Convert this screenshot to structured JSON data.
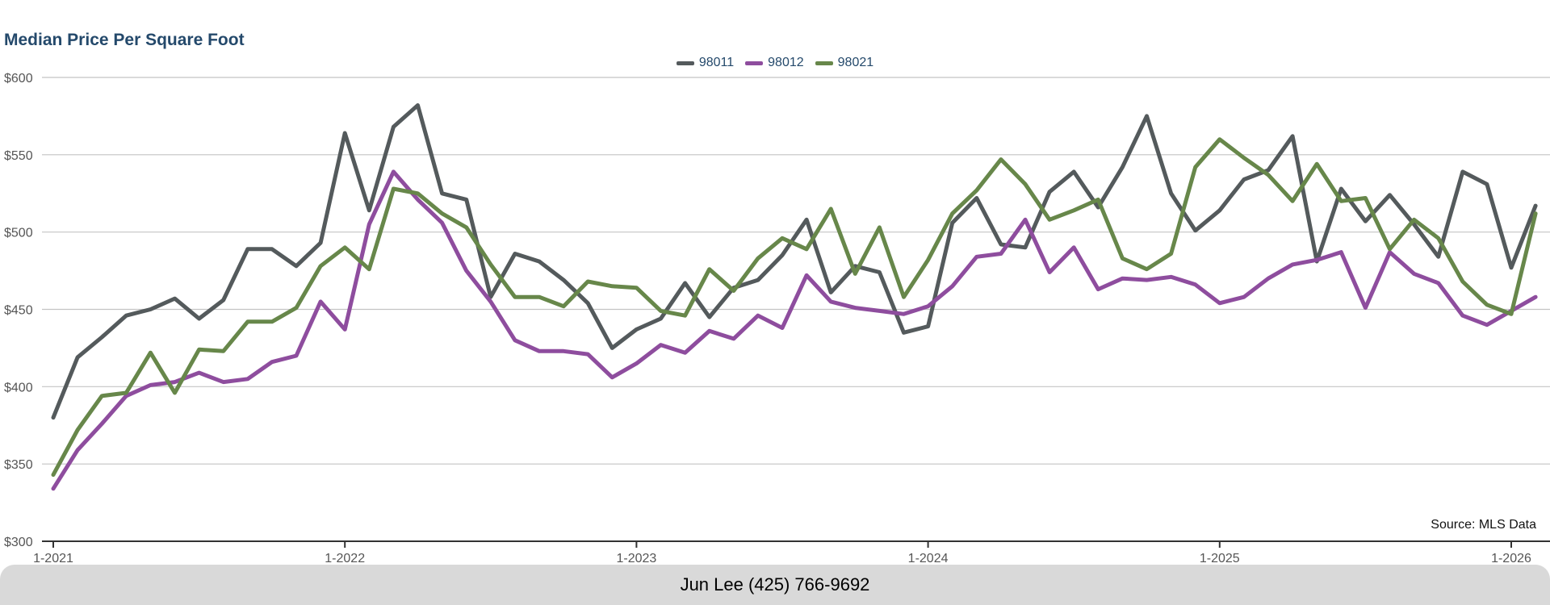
{
  "chart_data": {
    "type": "line",
    "title": "Median Price Per Square Foot",
    "ylim": [
      300,
      600
    ],
    "y_ticks": [
      "$600",
      "$550",
      "$500",
      "$450",
      "$400",
      "$350",
      "$300"
    ],
    "x_ticks": [
      "1-2021",
      "1-2022",
      "1-2023",
      "1-2024",
      "1-2025",
      "1-2026"
    ],
    "grid": "horizontal",
    "legend": "top-center",
    "source": "Source: MLS Data",
    "series": [
      {
        "name": "98011",
        "color": "#545a5c",
        "values": [
          380,
          419,
          432,
          446,
          450,
          457,
          444,
          456,
          489,
          489,
          478,
          493,
          564,
          514,
          568,
          582,
          525,
          521,
          458,
          486,
          481,
          469,
          454,
          425,
          437,
          444,
          467,
          445,
          464,
          469,
          485,
          508,
          461,
          478,
          474,
          435,
          439,
          506,
          522,
          492,
          490,
          526,
          539,
          516,
          542,
          575,
          525,
          501,
          514,
          534,
          540,
          562,
          481,
          528,
          507,
          524,
          505,
          484,
          539,
          531,
          477,
          517
        ]
      },
      {
        "name": "98012",
        "color": "#8e4d9e",
        "values": [
          334,
          359,
          376,
          394,
          401,
          403,
          409,
          403,
          405,
          416,
          420,
          455,
          437,
          505,
          539,
          521,
          506,
          475,
          455,
          430,
          423,
          423,
          421,
          406,
          415,
          427,
          422,
          436,
          431,
          446,
          438,
          472,
          455,
          451,
          449,
          447,
          452,
          465,
          484,
          486,
          508,
          474,
          490,
          463,
          470,
          469,
          471,
          466,
          454,
          458,
          470,
          479,
          482,
          487,
          451,
          487,
          473,
          467,
          446,
          440,
          449,
          458
        ]
      },
      {
        "name": "98021",
        "color": "#67874a",
        "values": [
          343,
          372,
          394,
          396,
          422,
          396,
          424,
          423,
          442,
          442,
          451,
          478,
          490,
          476,
          528,
          525,
          512,
          503,
          479,
          458,
          458,
          452,
          468,
          465,
          464,
          449,
          446,
          476,
          462,
          483,
          496,
          489,
          515,
          473,
          503,
          458,
          482,
          512,
          527,
          547,
          531,
          508,
          514,
          521,
          483,
          476,
          486,
          542,
          560,
          548,
          537,
          520,
          544,
          520,
          522,
          489,
          508,
          496,
          468,
          453,
          447,
          512
        ]
      }
    ]
  },
  "footer": {
    "contact": "Jun Lee (425) 766-9692"
  }
}
